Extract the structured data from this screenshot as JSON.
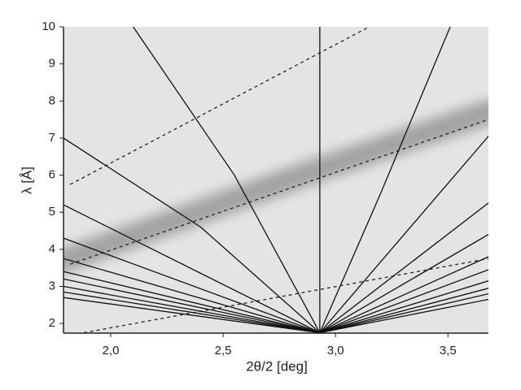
{
  "chart_data": {
    "type": "line",
    "x_label": "2θ/2 [deg]",
    "y_label": "λ [Å]",
    "xlim": [
      1.79,
      3.68
    ],
    "ylim": [
      1.74,
      10
    ],
    "xticks": [
      {
        "value": 2.0,
        "label": "2,0"
      },
      {
        "value": 2.5,
        "label": "2,5"
      },
      {
        "value": 3.0,
        "label": "3,0"
      },
      {
        "value": 3.5,
        "label": "3,5"
      }
    ],
    "yticks": [
      2,
      3,
      4,
      5,
      6,
      7,
      8,
      9,
      10
    ],
    "background": "#e4e4e4",
    "series": [
      {
        "style": "band",
        "color": "#6e6e6e",
        "x": [
          1.79,
          2.9,
          3.68
        ],
        "values": [
          3.7,
          6.1,
          7.7
        ]
      },
      {
        "style": "dashed",
        "color": "#222222",
        "x": [
          1.82,
          3.15
        ],
        "values": [
          5.75,
          10
        ]
      },
      {
        "style": "dashed",
        "color": "#222222",
        "x": [
          1.82,
          3.68
        ],
        "values": [
          3.6,
          7.5
        ]
      },
      {
        "style": "dashed",
        "color": "#222222",
        "x": [
          1.88,
          3.68
        ],
        "values": [
          1.75,
          3.75
        ]
      },
      {
        "style": "solid",
        "color": "#111111",
        "x": [
          2.93,
          2.93
        ],
        "values": [
          1.75,
          10
        ]
      },
      {
        "style": "solid",
        "color": "#111111",
        "x": [
          2.1,
          2.55,
          2.93
        ],
        "values": [
          10,
          6,
          1.75
        ]
      },
      {
        "style": "solid",
        "color": "#111111",
        "x": [
          1.79,
          2.4,
          2.93
        ],
        "values": [
          7.0,
          4.6,
          1.75
        ]
      },
      {
        "style": "solid",
        "color": "#111111",
        "x": [
          1.79,
          2.93
        ],
        "values": [
          5.2,
          1.75
        ]
      },
      {
        "style": "solid",
        "color": "#111111",
        "x": [
          1.79,
          2.93
        ],
        "values": [
          4.3,
          1.75
        ]
      },
      {
        "style": "solid",
        "color": "#111111",
        "x": [
          1.79,
          2.93
        ],
        "values": [
          3.75,
          1.75
        ]
      },
      {
        "style": "solid",
        "color": "#111111",
        "x": [
          1.79,
          2.93
        ],
        "values": [
          3.4,
          1.75
        ]
      },
      {
        "style": "solid",
        "color": "#111111",
        "x": [
          1.79,
          2.93
        ],
        "values": [
          3.2,
          1.75
        ]
      },
      {
        "style": "solid",
        "color": "#111111",
        "x": [
          1.79,
          2.93
        ],
        "values": [
          3.0,
          1.75
        ]
      },
      {
        "style": "solid",
        "color": "#111111",
        "x": [
          1.79,
          2.93
        ],
        "values": [
          2.85,
          1.75
        ]
      },
      {
        "style": "solid",
        "color": "#111111",
        "x": [
          1.79,
          2.93
        ],
        "values": [
          2.7,
          1.75
        ]
      },
      {
        "style": "solid",
        "color": "#111111",
        "x": [
          3.51,
          3.2,
          2.93
        ],
        "values": [
          10,
          5.5,
          1.75
        ]
      },
      {
        "style": "solid",
        "color": "#111111",
        "x": [
          3.68,
          2.93
        ],
        "values": [
          7.05,
          1.75
        ]
      },
      {
        "style": "solid",
        "color": "#111111",
        "x": [
          3.68,
          2.93
        ],
        "values": [
          5.25,
          1.75
        ]
      },
      {
        "style": "solid",
        "color": "#111111",
        "x": [
          3.68,
          2.93
        ],
        "values": [
          4.4,
          1.75
        ]
      },
      {
        "style": "solid",
        "color": "#111111",
        "x": [
          3.68,
          2.93
        ],
        "values": [
          3.8,
          1.75
        ]
      },
      {
        "style": "solid",
        "color": "#111111",
        "x": [
          3.68,
          2.93
        ],
        "values": [
          3.45,
          1.75
        ]
      },
      {
        "style": "solid",
        "color": "#111111",
        "x": [
          3.68,
          2.93
        ],
        "values": [
          3.15,
          1.75
        ]
      },
      {
        "style": "solid",
        "color": "#111111",
        "x": [
          3.68,
          2.93
        ],
        "values": [
          2.95,
          1.75
        ]
      },
      {
        "style": "solid",
        "color": "#111111",
        "x": [
          3.68,
          2.93
        ],
        "values": [
          2.8,
          1.75
        ]
      },
      {
        "style": "solid",
        "color": "#111111",
        "x": [
          3.68,
          2.93
        ],
        "values": [
          2.65,
          1.75
        ]
      }
    ]
  }
}
